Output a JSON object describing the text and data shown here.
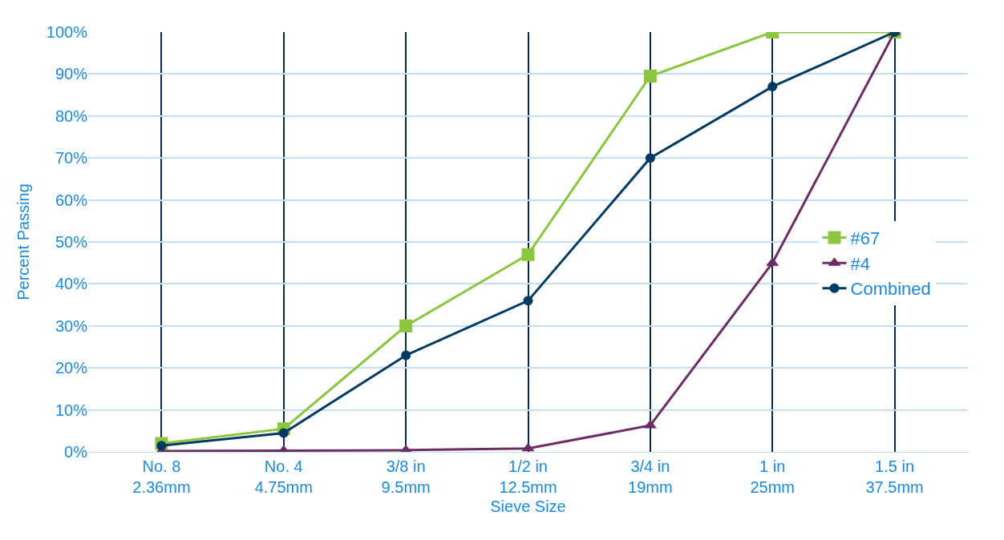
{
  "chart_data": {
    "type": "line",
    "xlabel": "Sieve Size",
    "ylabel": "Percent Passing",
    "categories": [
      "No. 8\n2.36mm",
      "No. 4\n4.75mm",
      "3/8 in\n9.5mm",
      "1/2 in\n12.5mm",
      "3/4 in\n19mm",
      "1 in\n25mm",
      "1.5 in\n37.5mm"
    ],
    "series": [
      {
        "name": "#67",
        "color": "#8cc63f",
        "marker": "square",
        "values": [
          2,
          5.5,
          30,
          47,
          89.5,
          100,
          100
        ]
      },
      {
        "name": "#4",
        "color": "#6b2d63",
        "marker": "triangle",
        "values": [
          0.2,
          0.3,
          0.4,
          0.8,
          6.3,
          45,
          100
        ]
      },
      {
        "name": "Combined",
        "color": "#003a63",
        "marker": "circle",
        "values": [
          1.5,
          4.5,
          23,
          36,
          70,
          87,
          100
        ]
      }
    ],
    "ylim": [
      0,
      100
    ],
    "yticks": [
      {
        "value": 0,
        "label": "0%"
      },
      {
        "value": 10,
        "label": "10%"
      },
      {
        "value": 20,
        "label": "20%"
      },
      {
        "value": 30,
        "label": "30%"
      },
      {
        "value": 40,
        "label": "40%"
      },
      {
        "value": 50,
        "label": "50%"
      },
      {
        "value": 60,
        "label": "60%"
      },
      {
        "value": 70,
        "label": "70%"
      },
      {
        "value": 80,
        "label": "80%"
      },
      {
        "value": 90,
        "label": "90%"
      },
      {
        "value": 100,
        "label": "100%"
      }
    ],
    "grid": true,
    "legend": "right",
    "line_style": "solid"
  }
}
